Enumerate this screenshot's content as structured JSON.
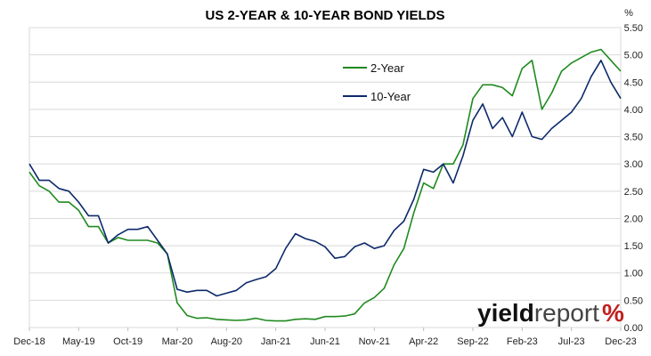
{
  "chart_data": {
    "type": "line",
    "title": "US 2-YEAR & 10-YEAR BOND YIELDS",
    "y_unit": "%",
    "ylim": [
      0,
      5.5
    ],
    "y_ticks": [
      "0.00",
      "0.50",
      "1.00",
      "1.50",
      "2.00",
      "2.50",
      "3.00",
      "3.50",
      "4.00",
      "4.50",
      "5.00",
      "5.50"
    ],
    "x_ticks": [
      "Dec-18",
      "May-19",
      "Oct-19",
      "Mar-20",
      "Aug-20",
      "Jan-21",
      "Jun-21",
      "Nov-21",
      "Apr-22",
      "Sep-22",
      "Feb-23",
      "Jul-23",
      "Dec-23"
    ],
    "grid": "horizontal",
    "legend_position": "top-right",
    "series": [
      {
        "name": "2-Year",
        "color": "#1f8a1f",
        "points": [
          [
            "Dec-18",
            2.85
          ],
          [
            "Jan-19",
            2.6
          ],
          [
            "Feb-19",
            2.5
          ],
          [
            "Mar-19",
            2.3
          ],
          [
            "Apr-19",
            2.3
          ],
          [
            "May-19",
            2.15
          ],
          [
            "Jun-19",
            1.85
          ],
          [
            "Jul-19",
            1.85
          ],
          [
            "Aug-19",
            1.55
          ],
          [
            "Sep-19",
            1.65
          ],
          [
            "Oct-19",
            1.6
          ],
          [
            "Nov-19",
            1.6
          ],
          [
            "Dec-19",
            1.6
          ],
          [
            "Jan-20",
            1.55
          ],
          [
            "Feb-20",
            1.35
          ],
          [
            "Mar-20",
            0.45
          ],
          [
            "Apr-20",
            0.22
          ],
          [
            "May-20",
            0.17
          ],
          [
            "Jun-20",
            0.18
          ],
          [
            "Jul-20",
            0.15
          ],
          [
            "Aug-20",
            0.14
          ],
          [
            "Sep-20",
            0.13
          ],
          [
            "Oct-20",
            0.14
          ],
          [
            "Nov-20",
            0.17
          ],
          [
            "Dec-20",
            0.13
          ],
          [
            "Jan-21",
            0.12
          ],
          [
            "Feb-21",
            0.12
          ],
          [
            "Mar-21",
            0.15
          ],
          [
            "Apr-21",
            0.16
          ],
          [
            "May-21",
            0.15
          ],
          [
            "Jun-21",
            0.2
          ],
          [
            "Jul-21",
            0.2
          ],
          [
            "Aug-21",
            0.21
          ],
          [
            "Sep-21",
            0.25
          ],
          [
            "Oct-21",
            0.45
          ],
          [
            "Nov-21",
            0.55
          ],
          [
            "Dec-21",
            0.72
          ],
          [
            "Jan-22",
            1.15
          ],
          [
            "Feb-22",
            1.45
          ],
          [
            "Mar-22",
            2.1
          ],
          [
            "Apr-22",
            2.65
          ],
          [
            "May-22",
            2.55
          ],
          [
            "Jun-22",
            3.0
          ],
          [
            "Jul-22",
            3.0
          ],
          [
            "Aug-22",
            3.35
          ],
          [
            "Sep-22",
            4.2
          ],
          [
            "Oct-22",
            4.45
          ],
          [
            "Nov-22",
            4.45
          ],
          [
            "Dec-22",
            4.4
          ],
          [
            "Jan-23",
            4.25
          ],
          [
            "Feb-23",
            4.75
          ],
          [
            "Mar-23",
            4.9
          ],
          [
            "Apr-23",
            4.0
          ],
          [
            "May-23",
            4.3
          ],
          [
            "Jun-23",
            4.7
          ],
          [
            "Jul-23",
            4.85
          ],
          [
            "Aug-23",
            4.95
          ],
          [
            "Sep-23",
            5.05
          ],
          [
            "Oct-23",
            5.1
          ],
          [
            "Nov-23",
            4.9
          ],
          [
            "Dec-23",
            4.7
          ]
        ]
      },
      {
        "name": "10-Year",
        "color": "#0d2a6b",
        "points": [
          [
            "Dec-18",
            3.0
          ],
          [
            "Jan-19",
            2.7
          ],
          [
            "Feb-19",
            2.7
          ],
          [
            "Mar-19",
            2.55
          ],
          [
            "Apr-19",
            2.5
          ],
          [
            "May-19",
            2.3
          ],
          [
            "Jun-19",
            2.05
          ],
          [
            "Jul-19",
            2.05
          ],
          [
            "Aug-19",
            1.55
          ],
          [
            "Sep-19",
            1.7
          ],
          [
            "Oct-19",
            1.8
          ],
          [
            "Nov-19",
            1.8
          ],
          [
            "Dec-19",
            1.85
          ],
          [
            "Jan-20",
            1.6
          ],
          [
            "Feb-20",
            1.35
          ],
          [
            "Mar-20",
            0.7
          ],
          [
            "Apr-20",
            0.65
          ],
          [
            "May-20",
            0.68
          ],
          [
            "Jun-20",
            0.68
          ],
          [
            "Jul-20",
            0.58
          ],
          [
            "Aug-20",
            0.63
          ],
          [
            "Sep-20",
            0.68
          ],
          [
            "Oct-20",
            0.82
          ],
          [
            "Nov-20",
            0.88
          ],
          [
            "Dec-20",
            0.93
          ],
          [
            "Jan-21",
            1.08
          ],
          [
            "Feb-21",
            1.45
          ],
          [
            "Mar-21",
            1.72
          ],
          [
            "Apr-21",
            1.63
          ],
          [
            "May-21",
            1.58
          ],
          [
            "Jun-21",
            1.48
          ],
          [
            "Jul-21",
            1.27
          ],
          [
            "Aug-21",
            1.3
          ],
          [
            "Sep-21",
            1.48
          ],
          [
            "Oct-21",
            1.55
          ],
          [
            "Nov-21",
            1.45
          ],
          [
            "Dec-21",
            1.5
          ],
          [
            "Jan-22",
            1.78
          ],
          [
            "Feb-22",
            1.95
          ],
          [
            "Mar-22",
            2.35
          ],
          [
            "Apr-22",
            2.9
          ],
          [
            "May-22",
            2.85
          ],
          [
            "Jun-22",
            3.0
          ],
          [
            "Jul-22",
            2.65
          ],
          [
            "Aug-22",
            3.15
          ],
          [
            "Sep-22",
            3.8
          ],
          [
            "Oct-22",
            4.1
          ],
          [
            "Nov-22",
            3.65
          ],
          [
            "Dec-22",
            3.85
          ],
          [
            "Jan-23",
            3.5
          ],
          [
            "Feb-23",
            3.95
          ],
          [
            "Mar-23",
            3.5
          ],
          [
            "Apr-23",
            3.45
          ],
          [
            "May-23",
            3.65
          ],
          [
            "Jun-23",
            3.8
          ],
          [
            "Jul-23",
            3.95
          ],
          [
            "Aug-23",
            4.2
          ],
          [
            "Sep-23",
            4.6
          ],
          [
            "Oct-23",
            4.9
          ],
          [
            "Nov-23",
            4.5
          ],
          [
            "Dec-23",
            4.2
          ]
        ]
      }
    ]
  },
  "brand": {
    "part1": "yield",
    "part2": "report",
    "symbol": "%"
  }
}
